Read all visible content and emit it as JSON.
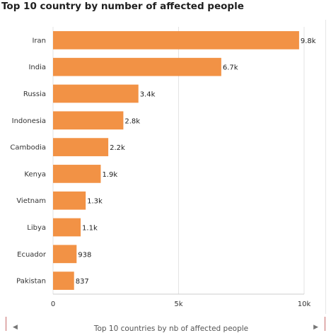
{
  "page": {
    "title": "Top 10 country by number of affected people",
    "caption": "Top 10 countries by nb of affected people"
  },
  "colors": {
    "bar": "#f29245",
    "grid": "#e3e3e3",
    "axis": "#cccccc"
  },
  "chart_data": {
    "type": "bar",
    "orientation": "horizontal",
    "categories": [
      "Iran",
      "India",
      "Russia",
      "Indonesia",
      "Cambodia",
      "Kenya",
      "Vietnam",
      "Libya",
      "Ecuador",
      "Pakistan"
    ],
    "values": [
      9800,
      6700,
      3400,
      2800,
      2200,
      1900,
      1300,
      1100,
      938,
      837
    ],
    "data_labels": [
      "9.8k",
      "6.7k",
      "3.4k",
      "2.8k",
      "2.2k",
      "1.9k",
      "1.3k",
      "1.1k",
      "938",
      "837"
    ],
    "title": "Top 10 country by number of affected people",
    "xlabel": "",
    "ylabel": "",
    "xlim": [
      0,
      10000
    ],
    "x_ticks": [
      0,
      5000,
      10000
    ],
    "x_tick_labels": [
      "0",
      "5k",
      "10k"
    ],
    "grid": true,
    "legend": "none"
  }
}
